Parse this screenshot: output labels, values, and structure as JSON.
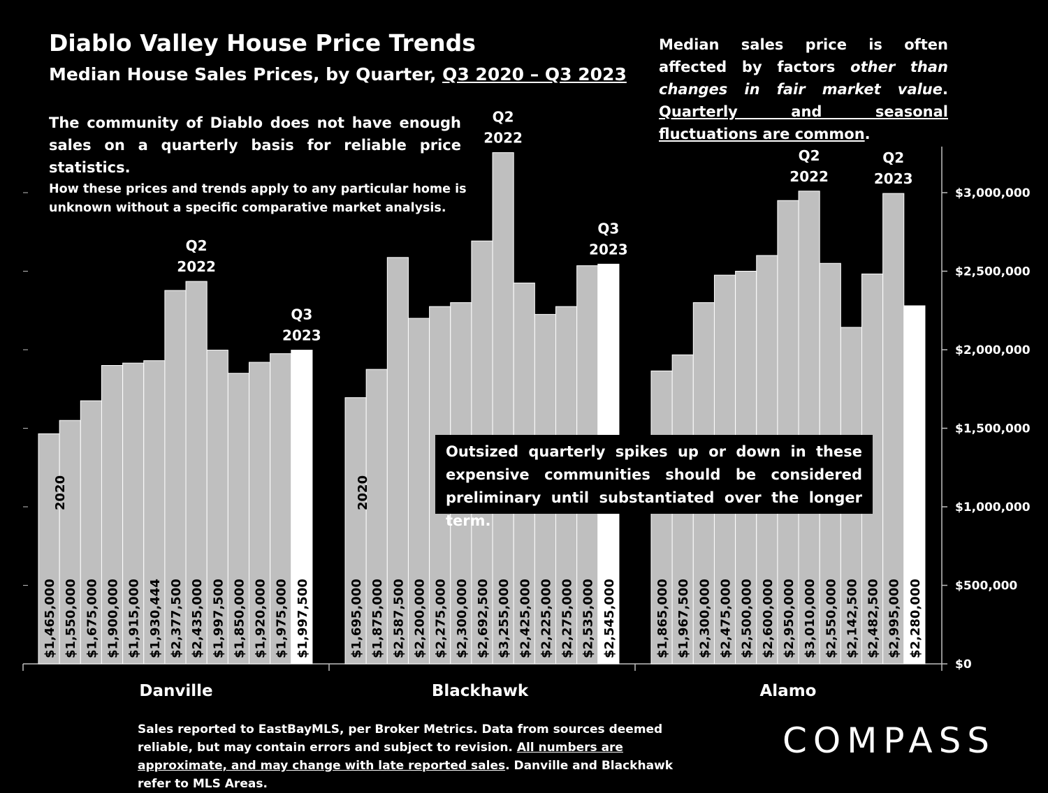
{
  "title": "Diablo Valley House Price Trends",
  "subtitle_prefix": "Median House Sales Prices, by Quarter, ",
  "subtitle_range": "Q3 2020 – Q3 2023",
  "note_right": {
    "p1": "Median sales price is often affected by factors ",
    "p2_italic": "other than changes in fair market value",
    "p3": ". ",
    "p4_underline": "Quarterly and seasonal fluctuations are common",
    "p5": "."
  },
  "note_diablo": "The community of Diablo does not have enough sales on a quarterly basis for reliable price statistics.",
  "note_cma": "How these prices and trends apply to any particular home is unknown without a specific comparative market analysis.",
  "callout": "Outsized quarterly spikes up or down in these expensive communities should be considered preliminary until substantiated over the longer term.",
  "footer": {
    "p1": "Sales reported to EastBayMLS, per Broker Metrics. Data from sources deemed reliable, but may contain errors and subject to revision. ",
    "p2_underline": "All numbers are approximate, and may change with late reported sales",
    "p3": ". Danville and Blackhawk refer to MLS Areas."
  },
  "logo": "COMPASS",
  "colors": {
    "background": "#000000",
    "bar": "#bfbfbf",
    "bar_highlight": "#ffffff",
    "text": "#ffffff"
  },
  "chart_data": {
    "type": "bar",
    "ylim": [
      0,
      3300000
    ],
    "y_ticks": [
      0,
      500000,
      1000000,
      1500000,
      2000000,
      2500000,
      3000000
    ],
    "y_tick_labels": [
      "$0",
      "$500,000",
      "$1,000,000",
      "$1,500,000",
      "$2,000,000",
      "$2,500,000",
      "$3,000,000"
    ],
    "grid": false,
    "groups": [
      {
        "name": "Danville",
        "values": [
          1465000,
          1550000,
          1675000,
          1900000,
          1915000,
          1930444,
          2377500,
          2435000,
          1997500,
          1850000,
          1920000,
          1975000,
          1997500
        ],
        "labels": [
          "$1,465,000",
          "$1,550,000",
          "$1,675,000",
          "$1,900,000",
          "$1,915,000",
          "$1,930,444",
          "$2,377,500",
          "$2,435,000",
          "$1,997,500",
          "$1,850,000",
          "$1,920,000",
          "$1,975,000",
          "$1,997,500"
        ],
        "highlight_index": 12,
        "year_marker": {
          "index": 1,
          "text": "2020"
        },
        "annotations": [
          {
            "index": 7,
            "line1": "Q2",
            "line2": "2022"
          },
          {
            "index": 12,
            "line1": "Q3",
            "line2": "2023"
          }
        ]
      },
      {
        "name": "Blackhawk",
        "values": [
          1695000,
          1875000,
          2587500,
          2200000,
          2275000,
          2300000,
          2692500,
          3255000,
          2425000,
          2225000,
          2275000,
          2535000,
          2545000
        ],
        "labels": [
          "$1,695,000",
          "$1,875,000",
          "$2,587,500",
          "$2,200,000",
          "$2,275,000",
          "$2,300,000",
          "$2,692,500",
          "$3,255,000",
          "$2,425,000",
          "$2,225,000",
          "$2,275,000",
          "$2,535,000",
          "$2,545,000"
        ],
        "highlight_index": 12,
        "year_marker": {
          "index": 0,
          "text": "2020"
        },
        "annotations": [
          {
            "index": 7,
            "line1": "Q2",
            "line2": "2022"
          },
          {
            "index": 12,
            "line1": "Q3",
            "line2": "2023"
          }
        ]
      },
      {
        "name": "Alamo",
        "values": [
          1865000,
          1967500,
          2300000,
          2475000,
          2500000,
          2600000,
          2950000,
          3010000,
          2550000,
          2142500,
          2482500,
          2995000,
          2280000
        ],
        "labels": [
          "$1,865,000",
          "$1,967,500",
          "$2,300,000",
          "$2,475,000",
          "$2,500,000",
          "$2,600,000",
          "$2,950,000",
          "$3,010,000",
          "$2,550,000",
          "$2,142,500",
          "$2,482,500",
          "$2,995,000",
          "$2,280,000"
        ],
        "highlight_index": 12,
        "year_marker": null,
        "annotations": [
          {
            "index": 7,
            "line1": "Q2",
            "line2": "2022"
          },
          {
            "index": 11,
            "line1": "Q2",
            "line2": "2023"
          }
        ]
      }
    ]
  }
}
